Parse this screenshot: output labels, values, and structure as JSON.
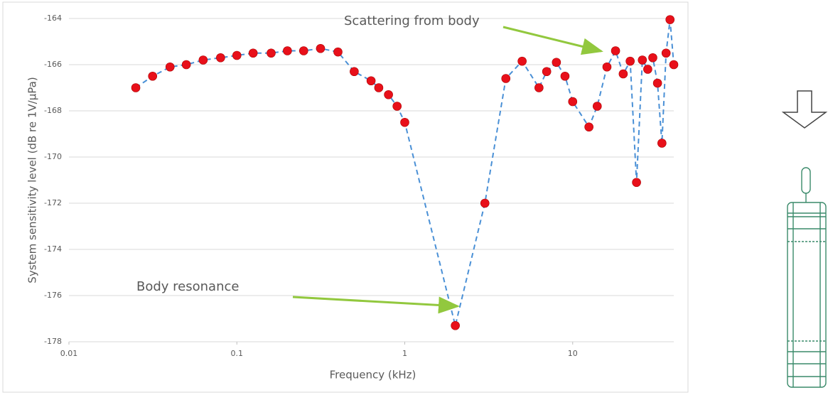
{
  "chart_data": {
    "type": "line",
    "x_label": "Frequency (kHz)",
    "y_label": "System sensitivity level (dB re 1V/µPa)",
    "x": [
      0.025,
      0.0315,
      0.04,
      0.05,
      0.063,
      0.08,
      0.1,
      0.125,
      0.16,
      0.2,
      0.25,
      0.315,
      0.4,
      0.5,
      0.63,
      0.7,
      0.8,
      0.9,
      1,
      2,
      3,
      4,
      5,
      6.3,
      7,
      8,
      9,
      10,
      12.5,
      14,
      16,
      18,
      20,
      22,
      24,
      26,
      28,
      30,
      32,
      34,
      36,
      38,
      40
    ],
    "values": [
      -167.0,
      -166.5,
      -166.1,
      -166.0,
      -165.8,
      -165.7,
      -165.6,
      -165.5,
      -165.5,
      -165.4,
      -165.4,
      -165.3,
      -165.45,
      -166.3,
      -166.7,
      -167.0,
      -167.3,
      -167.8,
      -168.5,
      -177.3,
      -172.0,
      -166.6,
      -165.85,
      -167.0,
      -166.3,
      -165.9,
      -166.5,
      -167.6,
      -168.7,
      -167.8,
      -166.1,
      -165.4,
      -166.4,
      -165.85,
      -171.1,
      -165.8,
      -166.2,
      -165.7,
      -166.8,
      -169.4,
      -165.5,
      -164.05,
      -166.0
    ],
    "color": "#e8101a",
    "line_color": "#4a90d6",
    "xlim": [
      0.01,
      40
    ],
    "xticks": [
      0.01,
      0.1,
      1,
      10
    ],
    "log_x": true,
    "ylim": [
      -178,
      -164
    ],
    "yticks": [
      -164,
      -166,
      -168,
      -170,
      -172,
      -174,
      -176,
      -178
    ],
    "grid": true,
    "annotations": [
      "Scattering from body",
      "Body resonance"
    ]
  }
}
